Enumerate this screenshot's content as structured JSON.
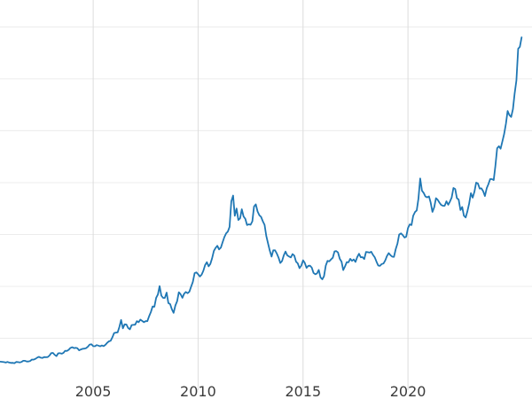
{
  "chart_data": {
    "type": "line",
    "title": "",
    "xlabel": "",
    "ylabel": "",
    "legend": "none",
    "grid": true,
    "background_color": "#ffffff",
    "xlim": [
      2000.56,
      2025.91
    ],
    "ylim": [
      0,
      3760
    ],
    "xticks": [
      {
        "year": 2005,
        "label": "2005"
      },
      {
        "year": 2010,
        "label": "2010"
      },
      {
        "year": 2015,
        "label": "2015"
      },
      {
        "year": 2020,
        "label": "2020"
      }
    ],
    "yticks": [
      500,
      1000,
      1500,
      2000,
      2500,
      3000,
      3500
    ],
    "series": [
      {
        "name": "",
        "color": "#1f77b4",
        "x_start": 2000.583,
        "x_step": 0.083333,
        "values": [
          274,
          273,
          270,
          266,
          272,
          266,
          262,
          263,
          260,
          272,
          270,
          267,
          272,
          283,
          283,
          276,
          276,
          281,
          295,
          294,
          302,
          314,
          321,
          313,
          310,
          319,
          317,
          319,
          333,
          356,
          359,
          340,
          328,
          355,
          356,
          351,
          360,
          379,
          378,
          389,
          407,
          414,
          405,
          408,
          403,
          384,
          392,
          398,
          400,
          405,
          420,
          439,
          442,
          424,
          423,
          434,
          429,
          422,
          431,
          424,
          437,
          456,
          470,
          476,
          510,
          550,
          555,
          557,
          611,
          676,
          596,
          634,
          632,
          599,
          586,
          627,
          629,
          631,
          665,
          655,
          679,
          667,
          655,
          665,
          665,
          713,
          754,
          806,
          803,
          890,
          922,
          1002,
          910,
          889,
          889,
          940,
          839,
          829,
          780,
          745,
          816,
          858,
          943,
          924,
          890,
          928,
          946,
          934,
          949,
          996,
          1043,
          1127,
          1135,
          1118,
          1095,
          1113,
          1149,
          1205,
          1233,
          1193,
          1216,
          1271,
          1342,
          1370,
          1391,
          1356,
          1373,
          1424,
          1474,
          1511,
          1529,
          1573,
          1820,
          1875,
          1680,
          1750,
          1640,
          1656,
          1743,
          1674,
          1650,
          1591,
          1598,
          1594,
          1627,
          1770,
          1790,
          1722,
          1685,
          1671,
          1628,
          1593,
          1487,
          1414,
          1343,
          1287,
          1348,
          1348,
          1316,
          1276,
          1225,
          1244,
          1300,
          1336,
          1299,
          1288,
          1279,
          1311,
          1296,
          1238,
          1222,
          1176,
          1200,
          1251,
          1227,
          1178,
          1198,
          1199,
          1181,
          1130,
          1117,
          1125,
          1159,
          1086,
          1068,
          1097,
          1200,
          1246,
          1242,
          1260,
          1276,
          1337,
          1340,
          1327,
          1266,
          1238,
          1157,
          1192,
          1234,
          1231,
          1266,
          1246,
          1260,
          1236,
          1283,
          1314,
          1280,
          1282,
          1264,
          1331,
          1330,
          1325,
          1334,
          1303,
          1281,
          1238,
          1201,
          1198,
          1215,
          1220,
          1250,
          1292,
          1320,
          1301,
          1286,
          1284,
          1359,
          1413,
          1500,
          1511,
          1495,
          1471,
          1479,
          1561,
          1597,
          1591,
          1680,
          1716,
          1732,
          1843,
          2040,
          1922,
          1900,
          1866,
          1858,
          1867,
          1808,
          1718,
          1762,
          1850,
          1835,
          1807,
          1784,
          1777,
          1777,
          1820,
          1787,
          1817,
          1856,
          1948,
          1937,
          1850,
          1836,
          1736,
          1765,
          1681,
          1664,
          1725,
          1797,
          1898,
          1855,
          1913,
          2000,
          1992,
          1942,
          1945,
          1918,
          1871,
          1945,
          1984,
          2034,
          2034,
          2024,
          2160,
          2331,
          2351,
          2327,
          2398,
          2470,
          2568,
          2690,
          2651,
          2633,
          2708,
          2858,
          2983,
          3290,
          3309,
          3400
        ]
      }
    ]
  }
}
